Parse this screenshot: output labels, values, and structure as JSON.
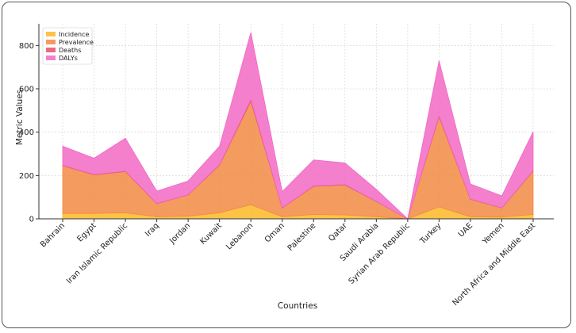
{
  "chart_data": {
    "type": "area",
    "stacked": true,
    "title": "",
    "xlabel": "Countries",
    "ylabel": "Metric Values",
    "ylim": [
      0,
      900
    ],
    "yticks": [
      0,
      200,
      400,
      600,
      800
    ],
    "grid": true,
    "legend_position": "top-left",
    "categories": [
      "Bahrain",
      "Egypt",
      "Iran Islamic Republic",
      "Iraq",
      "Jordan",
      "Kuwait",
      "Lebanon",
      "Oman",
      "Palestine",
      "Qatar",
      "Saudi Arabia",
      "Syrian Arab Republic",
      "Turkey",
      "UAE",
      "Yemen",
      "North Africa and Middle East"
    ],
    "series": [
      {
        "name": "Incidence",
        "color": "#FDB927",
        "values": [
          25,
          25,
          28,
          10,
          12,
          28,
          65,
          10,
          20,
          18,
          10,
          0,
          55,
          10,
          8,
          20
        ]
      },
      {
        "name": "Prevalence",
        "color": "#F28A44",
        "values": [
          220,
          178,
          190,
          60,
          98,
          220,
          478,
          40,
          130,
          138,
          70,
          0,
          415,
          80,
          42,
          200
        ]
      },
      {
        "name": "Deaths",
        "color": "#E8506A",
        "values": [
          2,
          2,
          2,
          1,
          1,
          2,
          7,
          1,
          2,
          2,
          1,
          0,
          5,
          1,
          1,
          2
        ]
      },
      {
        "name": "DALYs",
        "color": "#F268C4",
        "values": [
          88,
          75,
          152,
          57,
          64,
          85,
          310,
          75,
          120,
          100,
          55,
          0,
          255,
          70,
          55,
          180
        ]
      }
    ]
  }
}
